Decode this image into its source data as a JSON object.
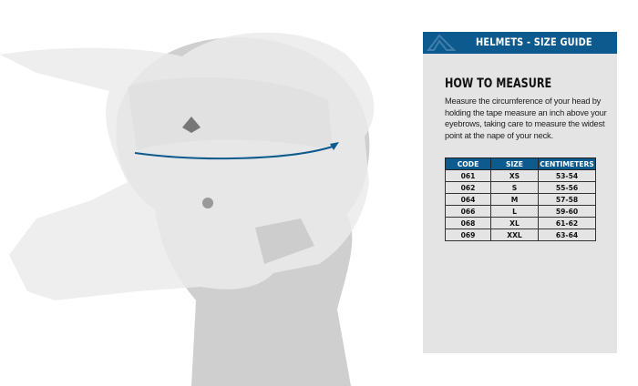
{
  "header": {
    "title": "HELMETS - SIZE GUIDE",
    "logo_icon": "brand-a-logo",
    "color": "#0d5a8e"
  },
  "section": {
    "title": "HOW TO MEASURE",
    "description": "Measure the circumference of your head by holding the tape measure an inch above your eyebrows, taking care to measure the widest point at the nape of your neck."
  },
  "table": {
    "columns": [
      "CODE",
      "SIZE",
      "CENTIMETERS"
    ],
    "rows": [
      [
        "061",
        "XS",
        "53-54"
      ],
      [
        "062",
        "S",
        "55-56"
      ],
      [
        "064",
        "M",
        "57-58"
      ],
      [
        "066",
        "L",
        "59-60"
      ],
      [
        "068",
        "XL",
        "61-62"
      ],
      [
        "069",
        "XXL",
        "63-64"
      ]
    ]
  }
}
